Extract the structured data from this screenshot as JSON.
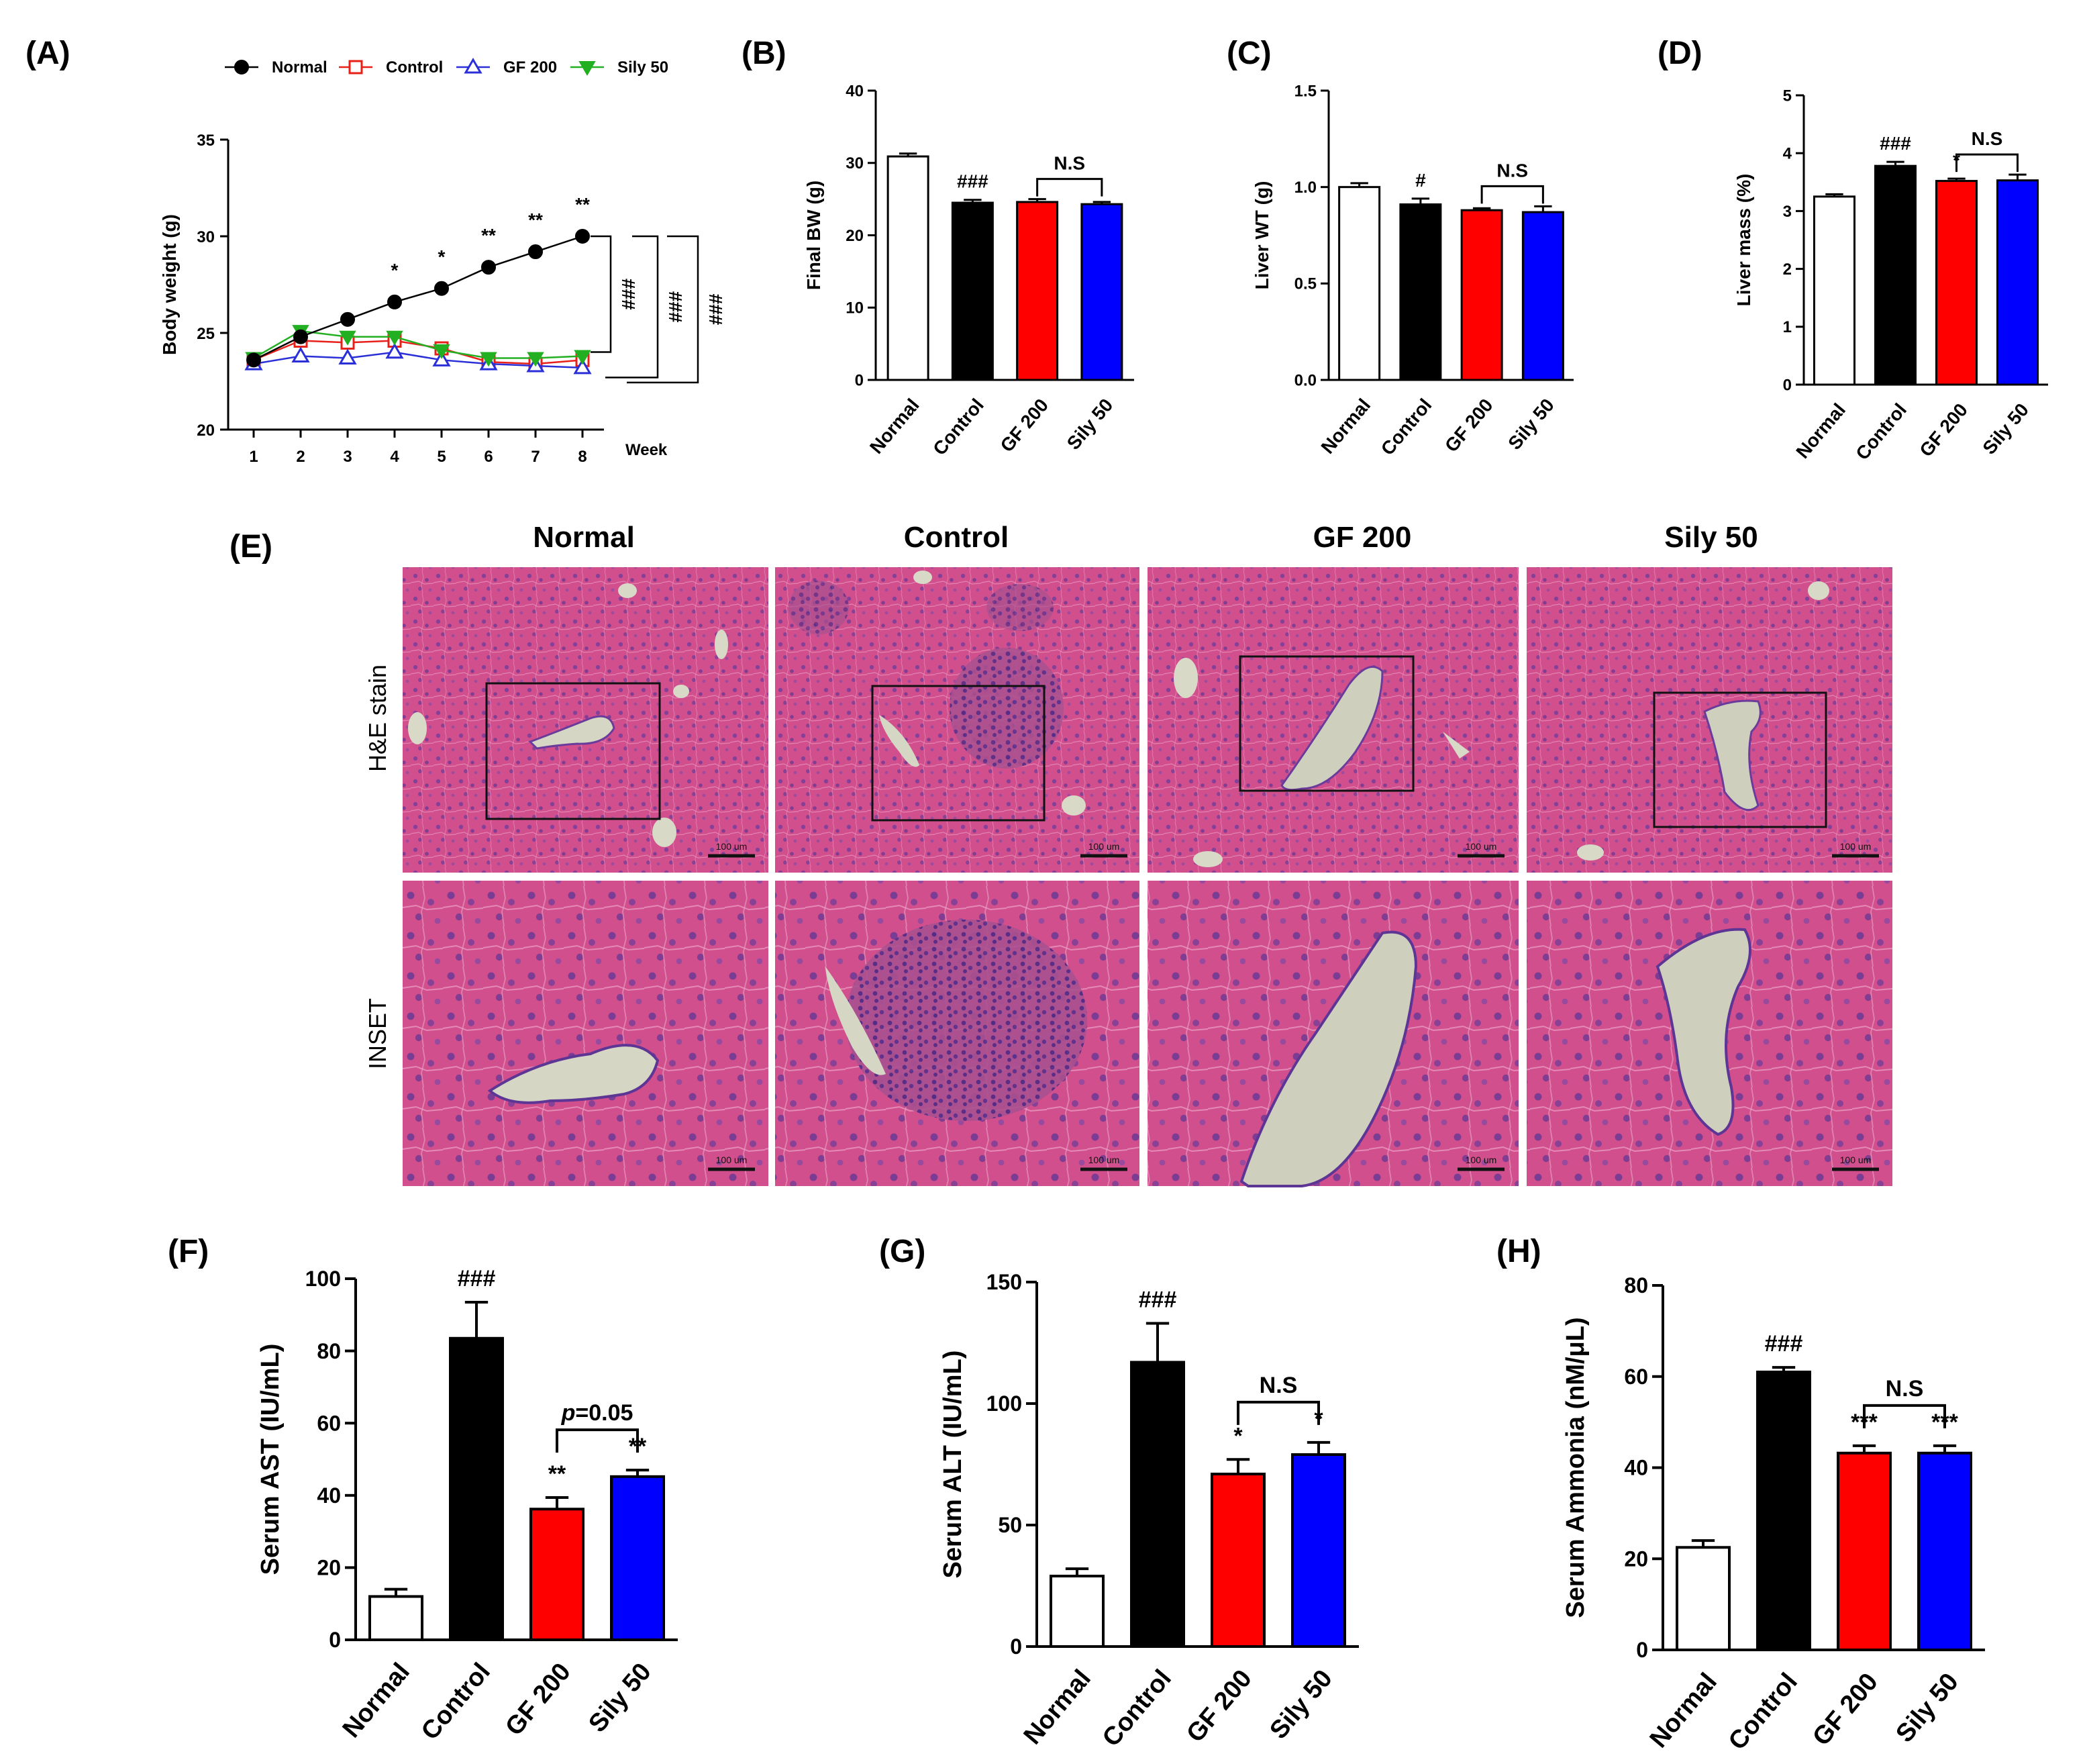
{
  "panels": {
    "A": "(A)",
    "B": "(B)",
    "C": "(C)",
    "D": "(D)",
    "E": "(E)",
    "F": "(F)",
    "G": "(G)",
    "H": "(H)"
  },
  "colors": {
    "normal": "#000000",
    "control": "#e8201a",
    "gf200": "#2a2fd8",
    "sily50": "#22b022",
    "bar_normal": "#ffffff",
    "bar_control": "#000000",
    "bar_gf200": "#ff0000",
    "bar_sily50": "#0000ff"
  },
  "histology": {
    "column_titles": [
      "Normal",
      "Control",
      "GF 200",
      "Sily 50"
    ],
    "row_labels": [
      "H&E stain",
      "INSET"
    ],
    "scale_bar_label": "100 um",
    "tissue_color": "#d04c8a"
  },
  "chart_data": [
    {
      "id": "A",
      "type": "line",
      "title": "",
      "xlabel": "Week",
      "ylabel": "Body weight (g)",
      "x": [
        1,
        2,
        3,
        4,
        5,
        6,
        7,
        8
      ],
      "ylim": [
        20,
        35
      ],
      "yticks": [
        20,
        25,
        30,
        35
      ],
      "series": [
        {
          "name": "Normal",
          "color": "#000000",
          "marker": "circle-filled",
          "values": [
            23.6,
            24.8,
            25.7,
            26.6,
            27.3,
            28.4,
            29.2,
            30.0
          ]
        },
        {
          "name": "Control",
          "color": "#e8201a",
          "marker": "square-open",
          "values": [
            23.6,
            24.6,
            24.5,
            24.6,
            24.2,
            23.5,
            23.4,
            23.6
          ]
        },
        {
          "name": "GF 200",
          "color": "#2a2fd8",
          "marker": "triangle-open",
          "values": [
            23.4,
            23.8,
            23.7,
            24.0,
            23.6,
            23.4,
            23.3,
            23.2
          ]
        },
        {
          "name": "Sily 50",
          "color": "#22b022",
          "marker": "triangle-down-filled",
          "values": [
            23.7,
            25.1,
            24.8,
            24.8,
            24.1,
            23.7,
            23.7,
            23.8
          ]
        }
      ],
      "point_annotations": [
        {
          "x": 4,
          "text": "*"
        },
        {
          "x": 5,
          "text": "*"
        },
        {
          "x": 6,
          "text": "**"
        },
        {
          "x": 7,
          "text": "**"
        },
        {
          "x": 8,
          "text": "**"
        }
      ],
      "bracket_labels": [
        "###",
        "###",
        "###"
      ]
    },
    {
      "id": "B",
      "type": "bar",
      "ylabel": "Final BW (g)",
      "categories": [
        "Normal",
        "Control",
        "GF 200",
        "Sily 50"
      ],
      "values": [
        30.9,
        24.5,
        24.6,
        24.3
      ],
      "errors": [
        0.4,
        0.4,
        0.4,
        0.3
      ],
      "ylim": [
        0,
        40
      ],
      "yticks": [
        0,
        10,
        20,
        30,
        40
      ],
      "annotations": [
        {
          "index": 1,
          "text": "###"
        }
      ],
      "bracket": {
        "from": 2,
        "to": 3,
        "text": "N.S"
      }
    },
    {
      "id": "C",
      "type": "bar",
      "ylabel": "Liver WT (g)",
      "categories": [
        "Normal",
        "Control",
        "GF 200",
        "Sily 50"
      ],
      "values": [
        1.0,
        0.91,
        0.88,
        0.87
      ],
      "errors": [
        0.02,
        0.03,
        0.01,
        0.03
      ],
      "ylim": [
        0,
        1.5
      ],
      "yticks": [
        "0.0",
        "0.5",
        "1.0",
        "1.5"
      ],
      "annotations": [
        {
          "index": 1,
          "text": "#"
        }
      ],
      "bracket": {
        "from": 2,
        "to": 3,
        "text": "N.S"
      }
    },
    {
      "id": "D",
      "type": "bar",
      "ylabel": "Liver mass (%)",
      "categories": [
        "Normal",
        "Control",
        "GF 200",
        "Sily 50"
      ],
      "values": [
        3.25,
        3.78,
        3.52,
        3.53
      ],
      "errors": [
        0.04,
        0.07,
        0.04,
        0.1
      ],
      "ylim": [
        0,
        5
      ],
      "yticks": [
        0,
        1,
        2,
        3,
        4,
        5
      ],
      "annotations": [
        {
          "index": 1,
          "text": "###"
        },
        {
          "index": 2,
          "text": "*"
        }
      ],
      "bracket": {
        "from": 2,
        "to": 3,
        "text": "N.S"
      }
    },
    {
      "id": "F",
      "type": "bar",
      "ylabel": "Serum AST (IU/mL)",
      "categories": [
        "Normal",
        "Control",
        "GF 200",
        "Sily 50"
      ],
      "values": [
        12,
        83.5,
        36.2,
        45.2
      ],
      "errors": [
        2,
        10,
        3.2,
        1.8
      ],
      "ylim": [
        0,
        100
      ],
      "yticks": [
        0,
        20,
        40,
        60,
        80,
        100
      ],
      "annotations": [
        {
          "index": 1,
          "text": "###"
        },
        {
          "index": 2,
          "text": "**"
        },
        {
          "index": 3,
          "text": "**"
        }
      ],
      "bracket": {
        "from": 2,
        "to": 3,
        "text": "p=0.05",
        "italic_prefix": "p",
        "rest": "=0.05"
      }
    },
    {
      "id": "G",
      "type": "bar",
      "ylabel": "Serum ALT (IU/mL)",
      "categories": [
        "Normal",
        "Control",
        "GF 200",
        "Sily 50"
      ],
      "values": [
        29,
        117,
        71,
        79
      ],
      "errors": [
        3,
        16,
        6,
        5
      ],
      "ylim": [
        0,
        150
      ],
      "yticks": [
        0,
        50,
        100,
        150
      ],
      "annotations": [
        {
          "index": 1,
          "text": "###"
        },
        {
          "index": 2,
          "text": "*"
        },
        {
          "index": 3,
          "text": "*"
        }
      ],
      "bracket": {
        "from": 2,
        "to": 3,
        "text": "N.S"
      }
    },
    {
      "id": "H",
      "type": "bar",
      "ylabel": "Serum Ammonia (nM/μL)",
      "categories": [
        "Normal",
        "Control",
        "GF 200",
        "Sily 50"
      ],
      "values": [
        22.5,
        61,
        43.2,
        43.2
      ],
      "errors": [
        1.5,
        1,
        1.6,
        1.6
      ],
      "ylim": [
        0,
        80
      ],
      "yticks": [
        0,
        20,
        40,
        60,
        80
      ],
      "annotations": [
        {
          "index": 1,
          "text": "###"
        },
        {
          "index": 2,
          "text": "***"
        },
        {
          "index": 3,
          "text": "***"
        }
      ],
      "bracket": {
        "from": 2,
        "to": 3,
        "text": "N.S"
      }
    }
  ]
}
